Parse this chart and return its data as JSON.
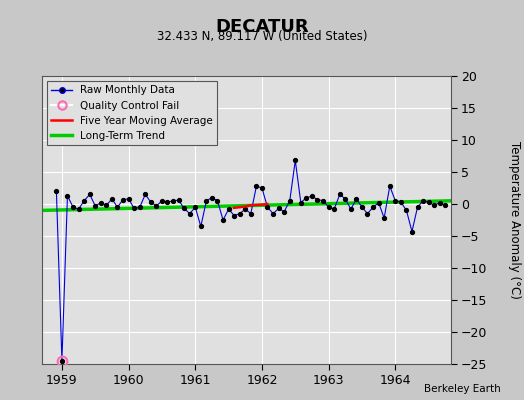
{
  "title": "DECATUR",
  "subtitle": "32.433 N, 89.117 W (United States)",
  "ylabel": "Temperature Anomaly (°C)",
  "watermark": "Berkeley Earth",
  "xlim": [
    1958.7,
    1964.83
  ],
  "ylim": [
    -25,
    20
  ],
  "yticks": [
    -25,
    -20,
    -15,
    -10,
    -5,
    0,
    5,
    10,
    15,
    20
  ],
  "xticks": [
    1959,
    1960,
    1961,
    1962,
    1963,
    1964
  ],
  "fig_bg_color": "#c8c8c8",
  "plot_bg_color": "#e0e0e0",
  "raw_x": [
    1958.917,
    1959.0,
    1959.083,
    1959.167,
    1959.25,
    1959.333,
    1959.417,
    1959.5,
    1959.583,
    1959.667,
    1959.75,
    1959.833,
    1959.917,
    1960.0,
    1960.083,
    1960.167,
    1960.25,
    1960.333,
    1960.417,
    1960.5,
    1960.583,
    1960.667,
    1960.75,
    1960.833,
    1960.917,
    1961.0,
    1961.083,
    1961.167,
    1961.25,
    1961.333,
    1961.417,
    1961.5,
    1961.583,
    1961.667,
    1961.75,
    1961.833,
    1961.917,
    1962.0,
    1962.083,
    1962.167,
    1962.25,
    1962.333,
    1962.417,
    1962.5,
    1962.583,
    1962.667,
    1962.75,
    1962.833,
    1962.917,
    1963.0,
    1963.083,
    1963.167,
    1963.25,
    1963.333,
    1963.417,
    1963.5,
    1963.583,
    1963.667,
    1963.75,
    1963.833,
    1963.917,
    1964.0,
    1964.083,
    1964.167,
    1964.25,
    1964.333,
    1964.417,
    1964.5,
    1964.583,
    1964.667,
    1964.75
  ],
  "raw_y": [
    2.0,
    -24.5,
    1.3,
    -0.5,
    -0.8,
    0.5,
    1.5,
    -0.3,
    0.2,
    -0.2,
    0.8,
    -0.5,
    0.7,
    0.8,
    -0.7,
    -0.5,
    1.5,
    0.3,
    -0.3,
    0.5,
    0.3,
    0.5,
    0.6,
    -0.7,
    -1.5,
    -0.5,
    -3.5,
    0.5,
    1.0,
    0.5,
    -2.5,
    -0.8,
    -1.8,
    -1.5,
    -0.8,
    -1.5,
    2.8,
    2.5,
    -0.5,
    -1.5,
    -0.7,
    -1.2,
    0.5,
    6.8,
    0.2,
    1.0,
    1.2,
    0.7,
    0.5,
    -0.5,
    -0.8,
    1.5,
    0.8,
    -0.8,
    0.8,
    -0.5,
    -1.5,
    -0.5,
    0.2,
    -2.2,
    2.8,
    0.5,
    0.3,
    -1.0,
    -4.3,
    -0.5,
    0.5,
    0.3,
    -0.2,
    0.2,
    -0.2
  ],
  "qc_fail_x": [
    1959.0
  ],
  "qc_fail_y": [
    -24.5
  ],
  "trend_x": [
    1958.7,
    1964.83
  ],
  "trend_y": [
    -1.0,
    0.5
  ],
  "moving_avg_x": [
    1961.58,
    1961.75,
    1961.83,
    1962.0,
    1962.08
  ],
  "moving_avg_y": [
    -0.6,
    -0.4,
    -0.2,
    -0.1,
    0.0
  ],
  "line_color": "#0000dd",
  "marker_color": "#000000",
  "trend_color": "#00cc00",
  "moving_avg_color": "#ff0000",
  "qc_color": "#ff69b4",
  "legend_loc": "upper left"
}
